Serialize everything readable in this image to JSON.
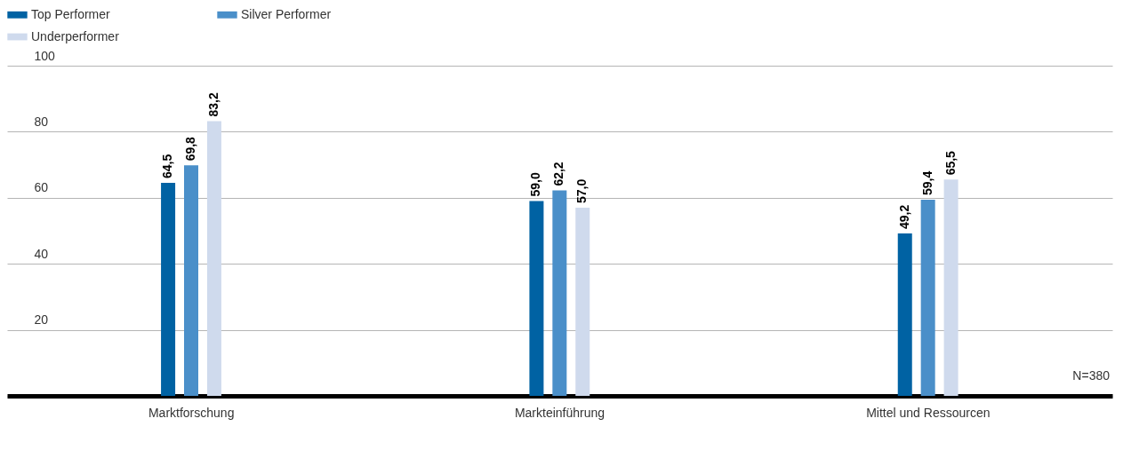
{
  "chart_data": {
    "type": "bar",
    "categories": [
      "Marktforschung",
      "Markteinführung",
      "Mittel und Ressourcen"
    ],
    "series": [
      {
        "name": "Top Performer",
        "color": "#0062a3",
        "values": [
          64.5,
          59.0,
          49.2
        ],
        "value_labels": [
          "64,5",
          "59,0",
          "49,2"
        ]
      },
      {
        "name": "Silver Performer",
        "color": "#4a8fc9",
        "values": [
          69.8,
          62.2,
          59.4
        ],
        "value_labels": [
          "69,8",
          "62,2",
          "59,4"
        ]
      },
      {
        "name": "Underperformer",
        "color": "#cfdaed",
        "values": [
          83.2,
          57.0,
          65.5
        ],
        "value_labels": [
          "83,2",
          "57,0",
          "65,5"
        ]
      }
    ],
    "ylim": [
      0,
      100
    ],
    "yticks": [
      {
        "value": 0,
        "label": null
      },
      20,
      40,
      60,
      80,
      100
    ],
    "grid": "y",
    "legend": "top left",
    "annotations": [
      "N=380"
    ]
  }
}
